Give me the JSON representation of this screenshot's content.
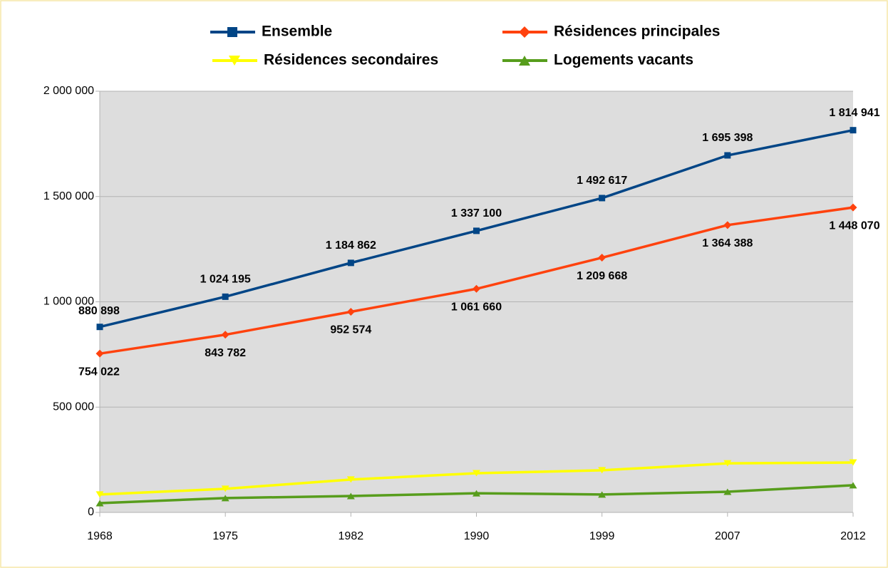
{
  "chart_data": {
    "type": "line",
    "categories": [
      "1968",
      "1975",
      "1982",
      "1990",
      "1999",
      "2007",
      "2012"
    ],
    "series": [
      {
        "name": "Ensemble",
        "color": "#004586",
        "marker": "square",
        "values": [
          880898,
          1024195,
          1184862,
          1337100,
          1492617,
          1695398,
          1814941
        ],
        "value_labels": [
          "880 898",
          "1 024 195",
          "1 184 862",
          "1 337 100",
          "1 492 617",
          "1 695 398",
          "1 814 941"
        ]
      },
      {
        "name": "Résidences principales",
        "color": "#ff420e",
        "marker": "diamond",
        "values": [
          754022,
          843782,
          952574,
          1061660,
          1209668,
          1364388,
          1448070
        ],
        "value_labels": [
          "754 022",
          "843 782",
          "952 574",
          "1 061 660",
          "1 209 668",
          "1 364 388",
          "1 448 070"
        ]
      },
      {
        "name": "Résidences secondaires",
        "color": "#ffff00",
        "marker": "triangle-down",
        "values": [
          85000,
          112000,
          156000,
          186000,
          200000,
          233000,
          237000
        ]
      },
      {
        "name": "Logements vacants",
        "color": "#579d1c",
        "marker": "triangle-up",
        "values": [
          44000,
          68000,
          78000,
          91000,
          85000,
          98000,
          129000
        ]
      }
    ],
    "ylim": [
      0,
      2000000
    ],
    "yticks": [
      0,
      {
        "value": 500000,
        "label": "500 000"
      },
      {
        "value": 1000000,
        "label": "1 000 000"
      },
      {
        "value": 1500000,
        "label": "1 500 000"
      },
      {
        "value": 2000000,
        "label": "2 000 000"
      }
    ],
    "grid": true,
    "legend": "top"
  }
}
